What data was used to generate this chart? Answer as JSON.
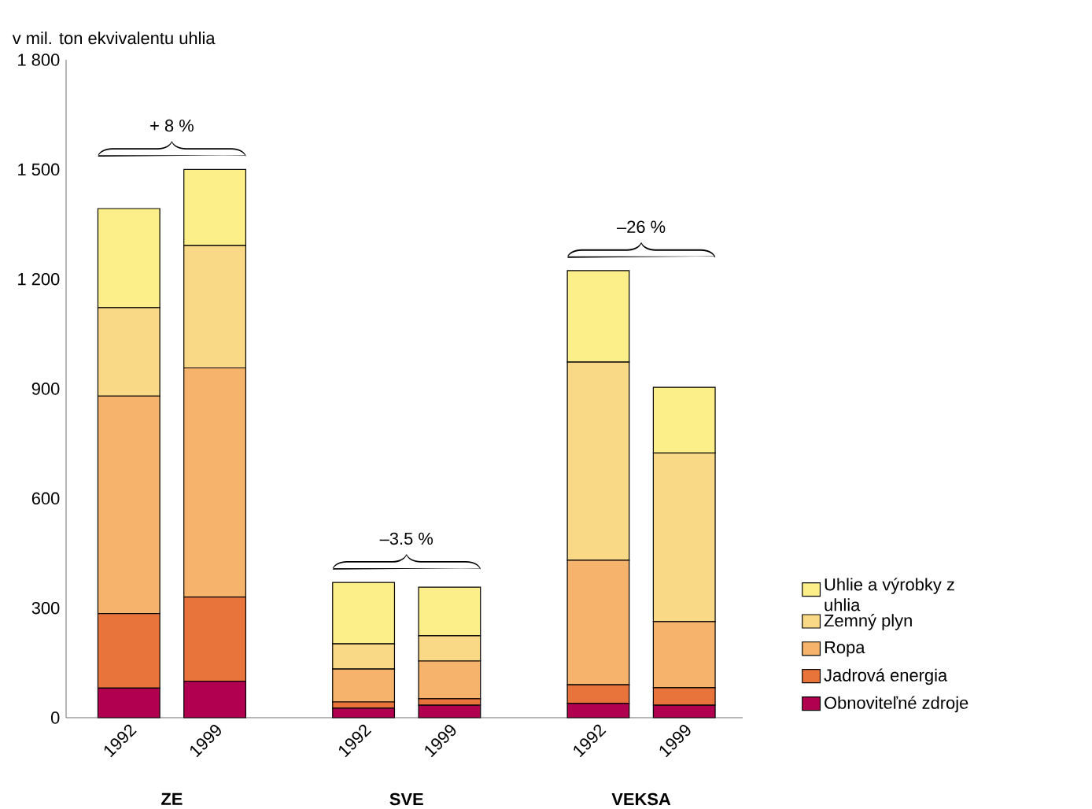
{
  "chart_data": {
    "type": "bar",
    "stacked": true,
    "ylabel": "v mil. ton ekvivalentu uhlia",
    "categories": [
      "1992",
      "1999",
      "1992",
      "1999",
      "1992",
      "1999"
    ],
    "series": [
      {
        "name": "Obnoviteľné zdroje",
        "color": "#b0004f",
        "values": [
          81,
          100,
          26,
          34,
          39,
          34
        ]
      },
      {
        "name": "Jadrová energia",
        "color": "#e8743b",
        "values": [
          204,
          230,
          17,
          18,
          51,
          48
        ]
      },
      {
        "name": "Ropa",
        "color": "#f5b36c",
        "values": [
          595,
          627,
          90,
          103,
          341,
          181
        ]
      },
      {
        "name": "Zemný plyn",
        "color": "#f9d986",
        "values": [
          242,
          335,
          69,
          69,
          542,
          461
        ]
      },
      {
        "name": "Uhlie a výrobky z uhlia",
        "color": "#fcee88",
        "values": [
          271,
          208,
          168,
          133,
          250,
          180
        ]
      }
    ],
    "ylim": [
      0,
      1800
    ],
    "yticks": [
      0,
      300,
      600,
      900,
      {
        "value": 1200,
        "label": "1 200"
      },
      {
        "value": 1500,
        "label": "1 500"
      },
      {
        "value": 1800,
        "label": "1 800"
      }
    ],
    "legend": "right",
    "annotations": [
      "+ 8 %",
      "–3.5 %",
      "–26 %",
      "ZE",
      "SVE",
      "VEKSA"
    ]
  }
}
